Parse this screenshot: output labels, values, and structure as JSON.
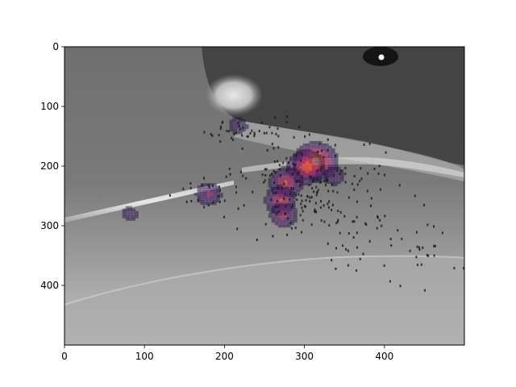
{
  "chart_data": {
    "type": "heatmap",
    "title": "",
    "xlabel": "",
    "ylabel": "",
    "xlim": [
      0,
      500
    ],
    "ylim": [
      500,
      0
    ],
    "y_inverted": true,
    "x_ticks": [
      "0",
      "100",
      "200",
      "300",
      "400"
    ],
    "x_tick_values": [
      0,
      100,
      200,
      300,
      400
    ],
    "y_ticks": [
      "0",
      "100",
      "200",
      "300",
      "400"
    ],
    "y_tick_values": [
      0,
      100,
      200,
      300,
      400
    ],
    "grid": false,
    "legend": "none",
    "background": "grayscale photo of a mouse head with a whisker/pipette under an infrared view",
    "colormap": "inferno",
    "hotspots": [
      {
        "x": 312,
        "y": 190,
        "intensity": 1.0
      },
      {
        "x": 300,
        "y": 200,
        "intensity": 0.85
      },
      {
        "x": 275,
        "y": 225,
        "intensity": 0.75
      },
      {
        "x": 268,
        "y": 255,
        "intensity": 0.7
      },
      {
        "x": 272,
        "y": 280,
        "intensity": 0.6
      },
      {
        "x": 178,
        "y": 245,
        "intensity": 0.55
      },
      {
        "x": 215,
        "y": 130,
        "intensity": 0.4
      },
      {
        "x": 80,
        "y": 278,
        "intensity": 0.35
      },
      {
        "x": 335,
        "y": 215,
        "intensity": 0.45
      }
    ],
    "colors": {
      "hot": "#fcd44a",
      "warm": "#e35933",
      "mid": "#a12a66",
      "cool": "#4c1d6b",
      "cold": "#1a0b3a"
    }
  }
}
